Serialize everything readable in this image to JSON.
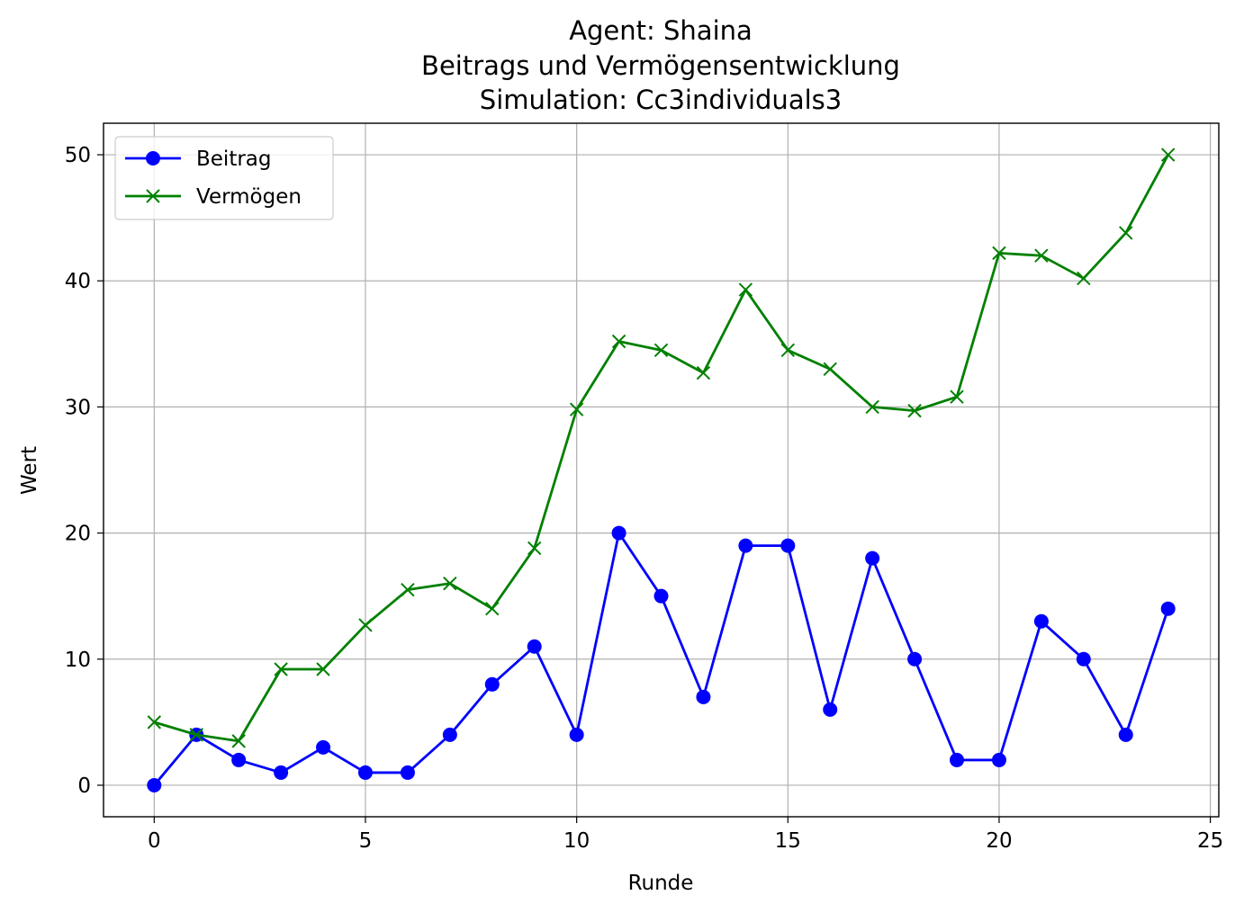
{
  "chart_data": {
    "type": "line",
    "title_lines": [
      "Agent: Shaina",
      "Beitrags und Vermögensentwicklung",
      "Simulation: Cc3individuals3"
    ],
    "xlabel": "Runde",
    "ylabel": "Wert",
    "xlim": [
      -1.2,
      25.2
    ],
    "ylim": [
      -2.5,
      52.5
    ],
    "xticks": [
      0,
      5,
      10,
      15,
      20,
      25
    ],
    "yticks": [
      0,
      10,
      20,
      30,
      40,
      50
    ],
    "grid": true,
    "legend_position": "top-left",
    "x": [
      0,
      1,
      2,
      3,
      4,
      5,
      6,
      7,
      8,
      9,
      10,
      11,
      12,
      13,
      14,
      15,
      16,
      17,
      18,
      19,
      20,
      21,
      22,
      23,
      24
    ],
    "series": [
      {
        "name": "Beitrag",
        "color": "#0000ff",
        "marker": "circle",
        "values": [
          0,
          4,
          2,
          1,
          3,
          1,
          1,
          4,
          8,
          11,
          4,
          20,
          15,
          7,
          19,
          19,
          6,
          18,
          10,
          2,
          2,
          13,
          10,
          4,
          14
        ]
      },
      {
        "name": "Vermögen",
        "color": "#008000",
        "marker": "x",
        "values": [
          5,
          4,
          3.5,
          9.2,
          9.2,
          12.7,
          15.5,
          16,
          14,
          18.8,
          29.8,
          35.2,
          34.5,
          32.7,
          39.3,
          34.5,
          33,
          30,
          29.7,
          30.8,
          42.2,
          42,
          40.2,
          43.8,
          50
        ]
      }
    ]
  }
}
